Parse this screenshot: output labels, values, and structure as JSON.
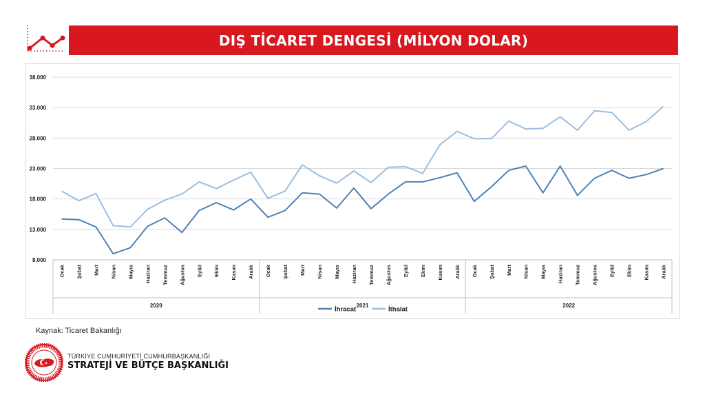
{
  "header": {
    "title": "DIŞ TİCARET DENGESİ (MİLYON DOLAR)",
    "accent_color": "#d8171f",
    "icon": "line-chart-icon"
  },
  "source": "Kaynak: Ticaret Bakanlığı",
  "org": {
    "line1": "TÜRKİYE CUMHURİYETİ CUMHURBAŞKANLIĞI",
    "line2": "STRATEJİ VE BÜTÇE BAŞKANLIĞI",
    "seal_text": "T.C. CUMHURBAŞKANLIĞI STRATEJİ VE BÜTÇE BAŞKANLIĞI",
    "icon": "presidency-seal-icon"
  },
  "chart_data": {
    "type": "line",
    "title": "",
    "xlabel": "",
    "ylabel": "",
    "ylim": [
      8000,
      38000
    ],
    "yticks": [
      8000,
      13000,
      18000,
      23000,
      28000,
      33000,
      38000
    ],
    "ytick_labels": [
      "8.000",
      "13.000",
      "18.000",
      "23.000",
      "28.000",
      "33.000",
      "38.000"
    ],
    "grid": true,
    "legend": "bottom",
    "categories": [
      "Ocak",
      "Şubat",
      "Mart",
      "Nisan",
      "Mayıs",
      "Haziran",
      "Temmuz",
      "Ağustos",
      "Eylül",
      "Ekim",
      "Kasım",
      "Aralık",
      "Ocak",
      "Şubat",
      "Mart",
      "Nisan",
      "Mayıs",
      "Haziran",
      "Temmuz",
      "Ağustos",
      "Eylül",
      "Ekim",
      "Kasım",
      "Aralık",
      "Ocak",
      "Şubat",
      "Mart",
      "Nisan",
      "Mayıs",
      "Haziran",
      "Temmuz",
      "Ağustos",
      "Eylül",
      "Ekim",
      "Kasım",
      "Aralık"
    ],
    "groups": [
      {
        "label": "2020",
        "count": 12
      },
      {
        "label": "2021",
        "count": 12
      },
      {
        "label": "2022",
        "count": 12
      }
    ],
    "series": [
      {
        "name": "İhracat",
        "color": "#4f81b5",
        "values": [
          14700,
          14600,
          13400,
          9000,
          10000,
          13500,
          14900,
          12500,
          16100,
          17400,
          16200,
          18000,
          15000,
          16100,
          19000,
          18800,
          16500,
          19800,
          16400,
          18800,
          20800,
          20800,
          21500,
          22300,
          17600,
          20000,
          22700,
          23400,
          19000,
          23400,
          18600,
          21400,
          22700,
          21400,
          22000,
          23000
        ]
      },
      {
        "name": "İthalat",
        "color": "#9cbde0",
        "values": [
          19300,
          17700,
          18900,
          13600,
          13400,
          16300,
          17800,
          18800,
          20800,
          19700,
          21100,
          22400,
          18100,
          19300,
          23600,
          21800,
          20600,
          22600,
          20700,
          23200,
          23300,
          22200,
          26900,
          29100,
          27900,
          27900,
          30800,
          29500,
          29600,
          31500,
          29300,
          32500,
          32200,
          29300,
          30700,
          33200
        ]
      }
    ]
  }
}
